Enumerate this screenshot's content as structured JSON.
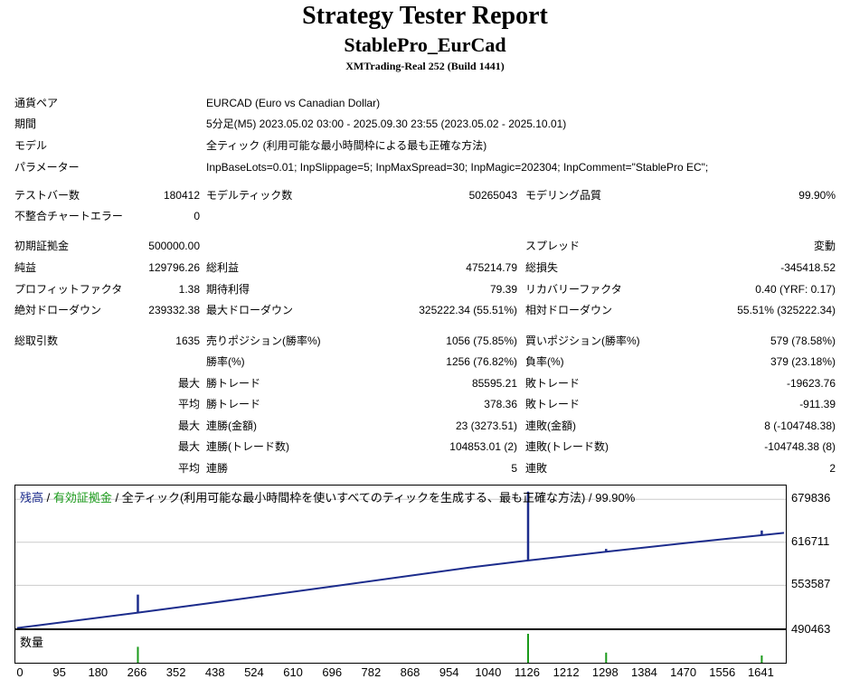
{
  "report": {
    "title": "Strategy Tester Report",
    "strategy": "StablePro_EurCad",
    "server": "XMTrading-Real 252 (Build 1441)"
  },
  "settings": {
    "symbol": {
      "label": "通貨ペア",
      "value": "EURCAD (Euro vs Canadian Dollar)"
    },
    "period": {
      "label": "期間",
      "value": "5分足(M5) 2023.05.02 03:00 - 2025.09.30 23:55 (2023.05.02 - 2025.10.01)"
    },
    "model": {
      "label": "モデル",
      "value": "全ティック (利用可能な最小時間枠による最も正確な方法)"
    },
    "params": {
      "label": "パラメーター",
      "value": "InpBaseLots=0.01; InpSlippage=5; InpMaxSpread=30; InpMagic=202304; InpComment=\"StablePro EC\";"
    }
  },
  "stats": {
    "bars": {
      "label": "テストバー数",
      "value": "180412"
    },
    "ticks": {
      "label": "モデルティック数",
      "value": "50265043"
    },
    "quality": {
      "label": "モデリング品質",
      "value": "99.90%"
    },
    "mismatch": {
      "label": "不整合チャートエラー",
      "value": "0"
    },
    "deposit": {
      "label": "初期証拠金",
      "value": "500000.00"
    },
    "spread": {
      "label": "スプレッド",
      "value": "変動"
    },
    "net_profit": {
      "label": "純益",
      "value": "129796.26"
    },
    "gross_profit": {
      "label": "総利益",
      "value": "475214.79"
    },
    "gross_loss": {
      "label": "総損失",
      "value": "-345418.52"
    },
    "profit_factor": {
      "label": "プロフィットファクタ",
      "value": "1.38"
    },
    "expected_payoff": {
      "label": "期待利得",
      "value": "79.39"
    },
    "recovery_factor": {
      "label": "リカバリーファクタ",
      "value": "0.40 (YRF: 0.17)"
    },
    "abs_dd": {
      "label": "絶対ドローダウン",
      "value": "239332.38"
    },
    "max_dd": {
      "label": "最大ドローダウン",
      "value": "325222.34 (55.51%)"
    },
    "rel_dd": {
      "label": "相対ドローダウン",
      "value": "55.51% (325222.34)"
    },
    "total_trades": {
      "label": "総取引数",
      "value": "1635"
    },
    "short_positions": {
      "label": "売りポジション(勝率%)",
      "value": "1056 (75.85%)"
    },
    "long_positions": {
      "label": "買いポジション(勝率%)",
      "value": "579 (78.58%)"
    },
    "win_rate": {
      "label": "勝率(%)",
      "value": "1256 (76.82%)"
    },
    "loss_rate": {
      "label": "負率(%)",
      "value": "379 (23.18%)"
    },
    "largest_win": {
      "prefix": "最大",
      "label": "勝トレード",
      "value": "85595.21"
    },
    "largest_loss": {
      "label": "敗トレード",
      "value": "-19623.76"
    },
    "avg_win": {
      "prefix": "平均",
      "label": "勝トレード",
      "value": "378.36"
    },
    "avg_loss": {
      "label": "敗トレード",
      "value": "-911.39"
    },
    "max_consec_wins_amt": {
      "prefix": "最大",
      "label": "連勝(金額)",
      "value": "23 (3273.51)"
    },
    "max_consec_losses_amt": {
      "label": "連敗(金額)",
      "value": "8 (-104748.38)"
    },
    "max_consec_wins_trades": {
      "prefix": "最大",
      "label": "連勝(トレード数)",
      "value": "104853.01 (2)"
    },
    "max_consec_losses_trades": {
      "label": "連敗(トレード数)",
      "value": "-104748.38 (8)"
    },
    "avg_consec_wins": {
      "prefix": "平均",
      "label": "連勝",
      "value": "5"
    },
    "avg_consec_losses": {
      "label": "連敗",
      "value": "2"
    }
  },
  "chart_legend": {
    "balance": "残高",
    "sep1": " / ",
    "equity": "有効証拠金",
    "sep2": " / ",
    "description": "全ティック(利用可能な最小時間枠を使いすべてのティックを生成する、最も正確な方法) / 99.90%"
  },
  "volume_label": "数量",
  "colors": {
    "balance": "#1c2c8c",
    "equity": "#1a9a1a",
    "volume": "#1a9a1a"
  },
  "chart_data": {
    "type": "line",
    "ylim": [
      490463,
      700000
    ],
    "yticks": [
      "679836",
      "616711",
      "553587",
      "490463"
    ],
    "xlim": [
      0,
      1690
    ],
    "xticks": [
      "0",
      "95",
      "180",
      "266",
      "352",
      "438",
      "524",
      "610",
      "696",
      "782",
      "868",
      "954",
      "1040",
      "1126",
      "1212",
      "1298",
      "1384",
      "1470",
      "1556",
      "1641"
    ],
    "series": [
      {
        "name": "残高",
        "x": [
          0,
          266,
          420,
          700,
          1000,
          1120,
          1300,
          1500,
          1690
        ],
        "y": [
          491000,
          513500,
          527000,
          552500,
          580000,
          589500,
          603000,
          617500,
          630500
        ]
      }
    ],
    "equity_spikes": [
      {
        "x": 266,
        "y": 540000
      },
      {
        "x": 1126,
        "y": 691000
      },
      {
        "x": 1298,
        "y": 607000
      },
      {
        "x": 1641,
        "y": 634000
      }
    ],
    "volume": [
      {
        "x": 266,
        "v": 0.55
      },
      {
        "x": 1126,
        "v": 1.0
      },
      {
        "x": 1298,
        "v": 0.35
      },
      {
        "x": 1641,
        "v": 0.25
      }
    ]
  }
}
